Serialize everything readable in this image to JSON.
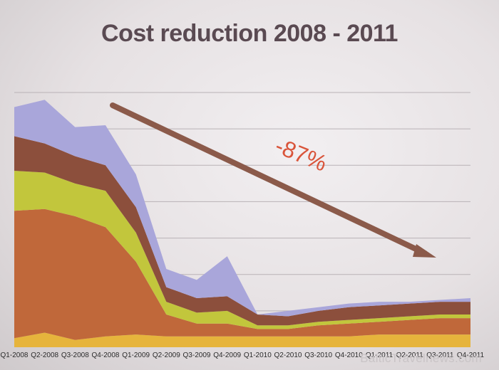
{
  "title": "Cost reduction 2008 - 2011",
  "watermark": "BalticTravelnews.com",
  "chart_data": {
    "type": "area",
    "stacked": true,
    "title": "Cost reduction 2008 - 2011",
    "xlabel": "",
    "ylabel": "",
    "categories": [
      "Q1-2008",
      "Q2-2008",
      "Q3-2008",
      "Q4-2008",
      "Q1-2009",
      "Q2-2009",
      "Q3-2009",
      "Q4-2009",
      "Q1-2010",
      "Q2-2010",
      "Q3-2010",
      "Q4-2010",
      "Q1-2011",
      "Q2-2011",
      "Q3-2011",
      "Q4-2011"
    ],
    "ylim": [
      0,
      7
    ],
    "grid": true,
    "legend": "none",
    "series": [
      {
        "color": "#e6b43c",
        "values": [
          0.25,
          0.4,
          0.2,
          0.3,
          0.35,
          0.3,
          0.3,
          0.3,
          0.3,
          0.3,
          0.3,
          0.3,
          0.35,
          0.35,
          0.35,
          0.35
        ]
      },
      {
        "color": "#c0683a",
        "values": [
          3.5,
          3.4,
          3.4,
          3.0,
          2.0,
          0.6,
          0.35,
          0.35,
          0.2,
          0.2,
          0.3,
          0.35,
          0.35,
          0.4,
          0.45,
          0.45
        ]
      },
      {
        "color": "#c2c63c",
        "values": [
          1.1,
          1.0,
          0.9,
          1.0,
          0.8,
          0.35,
          0.3,
          0.35,
          0.1,
          0.1,
          0.1,
          0.1,
          0.1,
          0.1,
          0.1,
          0.1
        ]
      },
      {
        "color": "#8c4f3c",
        "values": [
          0.95,
          0.8,
          0.75,
          0.7,
          0.7,
          0.4,
          0.4,
          0.4,
          0.3,
          0.25,
          0.3,
          0.35,
          0.35,
          0.35,
          0.35,
          0.35
        ]
      },
      {
        "color": "#a9a6da",
        "values": [
          0.8,
          1.2,
          0.8,
          1.1,
          0.9,
          0.5,
          0.5,
          1.1,
          0.0,
          0.15,
          0.1,
          0.1,
          0.1,
          0.05,
          0.05,
          0.1
        ]
      }
    ],
    "annotation": {
      "text": "-87%",
      "color": "#d9543a",
      "arrow_color": "#8b5a4a"
    }
  }
}
